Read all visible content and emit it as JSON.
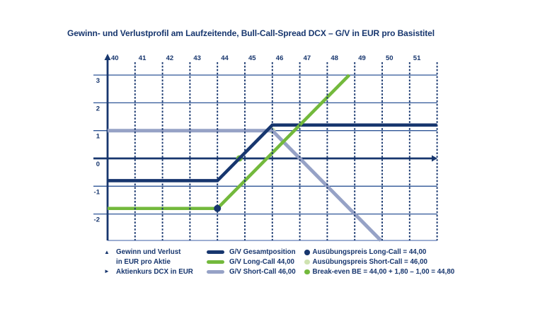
{
  "title": "Gewinn- und Verlustprofil am Laufzeitende, Bull-Call-Spread DCX – G/V in EUR pro Basistitel",
  "colors": {
    "navy": "#17366e",
    "green": "#73b93c",
    "light_blue": "#96a2c6",
    "pale_green": "#cfe3b1",
    "gridline": "#2f5697",
    "bottom_frame": "#7d94c4"
  },
  "chart_data": {
    "type": "line",
    "title": "Gewinn- und Verlustprofil am Laufzeitende, Bull-Call-Spread DCX – G/V in EUR pro Basistitel",
    "x_axis": {
      "label": "Aktienkurs DCX in EUR",
      "ticks": [
        40,
        41,
        42,
        43,
        44,
        45,
        46,
        47,
        48,
        49,
        50,
        51
      ],
      "range": [
        40,
        52
      ],
      "gridlines": "dashed vertical at each integer 41–52"
    },
    "y_axis": {
      "label": "Gewinn und Verlust in EUR pro Aktie",
      "ticks": [
        3,
        2,
        1,
        0,
        -1,
        -2
      ],
      "range": [
        -3,
        3.5
      ],
      "gridlines": "thin solid horizontal at each labeled tick"
    },
    "series": [
      {
        "name": "G/V Gesamtposition",
        "color": "#17366e",
        "width": 4.6,
        "z": 2,
        "points": [
          [
            40,
            -0.8
          ],
          [
            44,
            -0.8
          ],
          [
            46,
            1.2
          ],
          [
            52,
            1.2
          ]
        ]
      },
      {
        "name": "G/V Long-Call 44,00",
        "color": "#73b93c",
        "width": 4.6,
        "z": 3,
        "points": [
          [
            40,
            -1.8
          ],
          [
            44,
            -1.8
          ],
          [
            48.8,
            3.0
          ]
        ]
      },
      {
        "name": "G/V Short-Call 46,00",
        "color": "#96a2c6",
        "width": 5,
        "z": 1,
        "points": [
          [
            40,
            1.0
          ],
          [
            46,
            1.0
          ],
          [
            49.95,
            -2.95
          ]
        ]
      }
    ],
    "markers": [
      {
        "label": "Ausübungspreis Long-Call = 44,00",
        "color": "#17366e",
        "x": 44,
        "y": -1.8,
        "r": 5,
        "layer": "above"
      },
      {
        "label": "Ausübungspreis Short-Call = 46,00",
        "color": "#cfe3b1",
        "x": 46,
        "y": 1.0,
        "r": 4.5,
        "layer": "below"
      },
      {
        "label": "Break-even BE = 44,00 + 1,80 – 1,00 = 44,80",
        "color": "#73b93c",
        "x": 44.8,
        "y": 0,
        "r": 4.5,
        "layer": "below"
      }
    ]
  },
  "legend": {
    "y_axis_note_icon": "▲",
    "y_axis_note_line1": "Gewinn und Verlust",
    "y_axis_note_line2": "in EUR pro Aktie",
    "x_axis_note_icon": "►",
    "x_axis_note": "Aktienkurs DCX in EUR"
  }
}
